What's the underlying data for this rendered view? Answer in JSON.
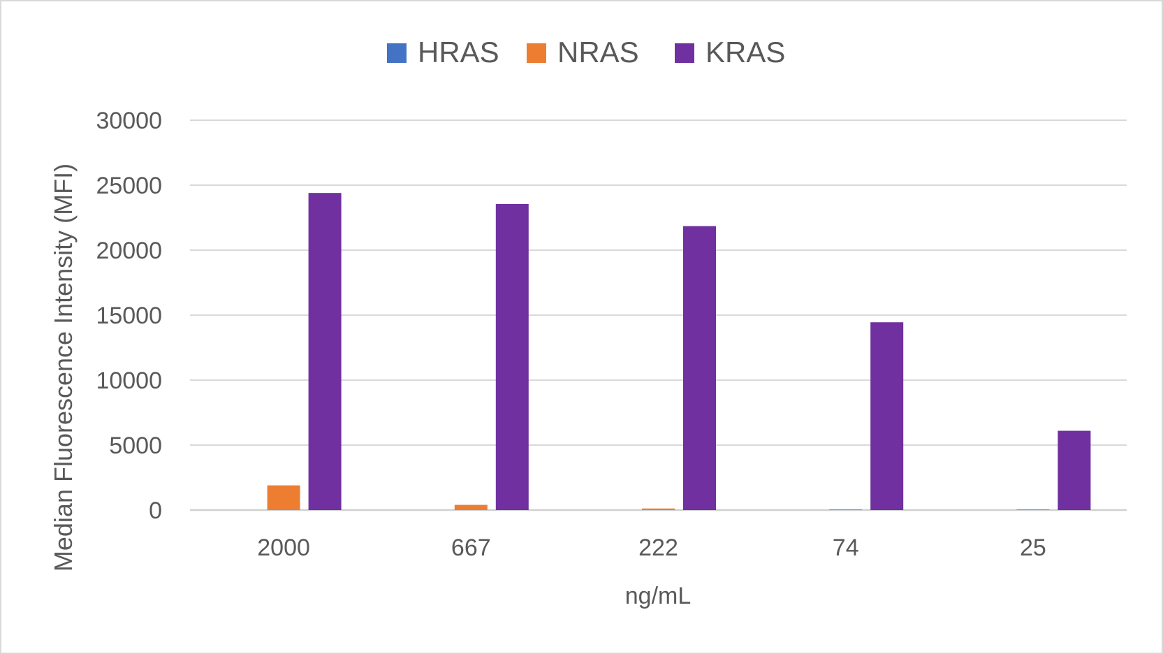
{
  "chart_data": {
    "type": "bar",
    "title": "",
    "xlabel": "ng/mL",
    "ylabel": "Median Fluorescence Intensity (MFI)",
    "categories": [
      "2000",
      "667",
      "222",
      "74",
      "25"
    ],
    "ylim": [
      0,
      30000
    ],
    "yticks": [
      0,
      5000,
      10000,
      15000,
      20000,
      25000,
      30000
    ],
    "ytick_labels": [
      "0",
      "5000",
      "10000",
      "15000",
      "20000",
      "25000",
      "30000"
    ],
    "grid": true,
    "legend_position": "top",
    "series": [
      {
        "name": "HRAS",
        "color": "#4472c4",
        "values": [
          0,
          0,
          0,
          0,
          0
        ]
      },
      {
        "name": "NRAS",
        "color": "#ed7d31",
        "values": [
          1900,
          400,
          120,
          60,
          60
        ]
      },
      {
        "name": "KRAS",
        "color": "#7030a0",
        "values": [
          24400,
          23550,
          21850,
          14450,
          6100
        ]
      }
    ]
  }
}
